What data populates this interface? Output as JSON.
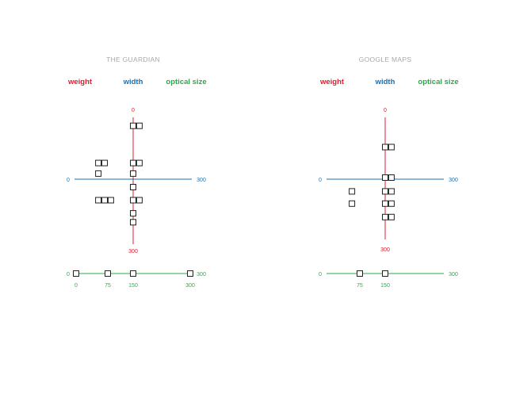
{
  "colors": {
    "weight": "#e0202e",
    "width": "#1f6fad",
    "optical_size": "#2ea84a",
    "title": "#a9a9a9",
    "marker_stroke": "#222222"
  },
  "legend": {
    "weight": "weight",
    "width": "width",
    "optical_size": "optical size"
  },
  "panels": [
    {
      "title": "THE GUARDIAN",
      "weight_axis": {
        "min_label": "0",
        "max_label": "300",
        "range": [
          0,
          300
        ]
      },
      "width_axis": {
        "min_label": "0",
        "max_label": "300",
        "range": [
          0,
          300
        ]
      },
      "optical_axis": {
        "min_label": "0",
        "max_label": "300",
        "range": [
          0,
          300
        ],
        "ticks": [
          "0",
          "75",
          "150",
          "300"
        ]
      },
      "points": [
        {
          "w": 150,
          "h": 20
        },
        {
          "w": 166,
          "h": 20
        },
        {
          "w": 61,
          "h": 108
        },
        {
          "w": 77,
          "h": 108
        },
        {
          "w": 150,
          "h": 108
        },
        {
          "w": 166,
          "h": 108
        },
        {
          "w": 61,
          "h": 133
        },
        {
          "w": 150,
          "h": 133
        },
        {
          "w": 150,
          "h": 165
        },
        {
          "w": 61,
          "h": 196
        },
        {
          "w": 77,
          "h": 196
        },
        {
          "w": 93,
          "h": 196
        },
        {
          "w": 150,
          "h": 196
        },
        {
          "w": 166,
          "h": 196
        },
        {
          "w": 150,
          "h": 227
        },
        {
          "w": 150,
          "h": 248
        }
      ],
      "optical_points": [
        0,
        75,
        150,
        275
      ]
    },
    {
      "title": "GOOGLE MAPS",
      "weight_axis": {
        "min_label": "0",
        "max_label": "300",
        "range": [
          0,
          300
        ]
      },
      "width_axis": {
        "min_label": "0",
        "max_label": "300",
        "range": [
          0,
          300
        ]
      },
      "optical_axis": {
        "min_label": "0",
        "max_label": "300",
        "range": [
          0,
          300
        ],
        "ticks": [
          "75",
          "150"
        ]
      },
      "points": [
        {
          "w": 150,
          "h": 73
        },
        {
          "w": 166,
          "h": 73
        },
        {
          "w": 150,
          "h": 148
        },
        {
          "w": 166,
          "h": 148
        },
        {
          "w": 65,
          "h": 182
        },
        {
          "w": 150,
          "h": 182
        },
        {
          "w": 166,
          "h": 182
        },
        {
          "w": 65,
          "h": 212
        },
        {
          "w": 150,
          "h": 212
        },
        {
          "w": 166,
          "h": 212
        },
        {
          "w": 150,
          "h": 245
        },
        {
          "w": 166,
          "h": 245
        }
      ],
      "optical_points": [
        75,
        150
      ]
    }
  ]
}
